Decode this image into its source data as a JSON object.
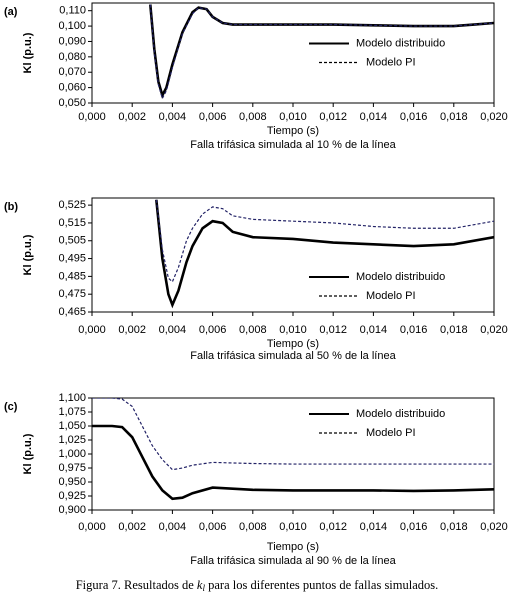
{
  "chart_data": [
    {
      "type": "line",
      "panel": "(a)",
      "ylabel": "Kl (p.u.)",
      "xlabel": "Tiempo (s)",
      "subtitle": "Falla trifásica simulada al 10 % de la línea",
      "x": [
        0.0029,
        0.0031,
        0.0033,
        0.0035,
        0.0037,
        0.004,
        0.0045,
        0.005,
        0.0053,
        0.0057,
        0.006,
        0.0065,
        0.007,
        0.008,
        0.01,
        0.012,
        0.014,
        0.016,
        0.018,
        0.019,
        0.02
      ],
      "series": [
        {
          "name": "Modelo distribuido",
          "color": "#000000",
          "line_style": "solid",
          "values": [
            0.114,
            0.085,
            0.064,
            0.055,
            0.06,
            0.075,
            0.096,
            0.109,
            0.112,
            0.111,
            0.106,
            0.102,
            0.101,
            0.101,
            0.101,
            0.101,
            0.1005,
            0.1,
            0.1,
            0.101,
            0.102
          ]
        },
        {
          "name": "Modelo PI",
          "color": "#222266",
          "line_style": "dashed",
          "values": [
            0.114,
            0.083,
            0.062,
            0.053,
            0.058,
            0.073,
            0.095,
            0.108,
            0.112,
            0.111,
            0.106,
            0.102,
            0.101,
            0.101,
            0.101,
            0.101,
            0.1005,
            0.1,
            0.1,
            0.101,
            0.102
          ]
        }
      ],
      "xlim": [
        0,
        0.02
      ],
      "xticks": [
        {
          "value": 0,
          "label": "0,000"
        },
        {
          "value": 0.002,
          "label": "0,002"
        },
        {
          "value": 0.004,
          "label": "0,004"
        },
        {
          "value": 0.006,
          "label": "0,006"
        },
        {
          "value": 0.008,
          "label": "0,008"
        },
        {
          "value": 0.01,
          "label": "0,010"
        },
        {
          "value": 0.012,
          "label": "0,012"
        },
        {
          "value": 0.014,
          "label": "0,014"
        },
        {
          "value": 0.016,
          "label": "0,016"
        },
        {
          "value": 0.018,
          "label": "0,018"
        },
        {
          "value": 0.02,
          "label": "0,020"
        }
      ],
      "ylim": [
        0.05,
        0.115
      ],
      "yticks": [
        {
          "value": 0.05,
          "label": "0,050"
        },
        {
          "value": 0.06,
          "label": "0,060"
        },
        {
          "value": 0.07,
          "label": "0,070"
        },
        {
          "value": 0.08,
          "label": "0,080"
        },
        {
          "value": 0.09,
          "label": "0,090"
        },
        {
          "value": 0.1,
          "label": "0,100"
        },
        {
          "value": 0.11,
          "label": "0,110"
        }
      ],
      "legend": "center right"
    },
    {
      "type": "line",
      "panel": "(b)",
      "ylabel": "Kl (p.u.)",
      "xlabel": "Tiempo (s)",
      "subtitle": "Falla trifásica simulada al 50 % de la línea",
      "x": [
        0.0032,
        0.0035,
        0.0038,
        0.004,
        0.0043,
        0.0047,
        0.005,
        0.0055,
        0.006,
        0.0065,
        0.007,
        0.008,
        0.01,
        0.012,
        0.014,
        0.016,
        0.018,
        0.02
      ],
      "series": [
        {
          "name": "Modelo distribuido",
          "color": "#000000",
          "line_style": "solid",
          "values": [
            0.528,
            0.495,
            0.475,
            0.469,
            0.477,
            0.493,
            0.502,
            0.512,
            0.516,
            0.515,
            0.51,
            0.507,
            0.506,
            0.504,
            0.503,
            0.502,
            0.503,
            0.507
          ]
        },
        {
          "name": "Modelo PI",
          "color": "#222266",
          "line_style": "dashed",
          "values": [
            0.528,
            0.5,
            0.484,
            0.482,
            0.49,
            0.505,
            0.512,
            0.52,
            0.524,
            0.523,
            0.519,
            0.517,
            0.516,
            0.515,
            0.513,
            0.512,
            0.512,
            0.516
          ]
        }
      ],
      "xlim": [
        0,
        0.02
      ],
      "xticks": [
        {
          "value": 0,
          "label": "0,000"
        },
        {
          "value": 0.002,
          "label": "0,002"
        },
        {
          "value": 0.004,
          "label": "0,004"
        },
        {
          "value": 0.006,
          "label": "0,006"
        },
        {
          "value": 0.008,
          "label": "0,008"
        },
        {
          "value": 0.01,
          "label": "0,010"
        },
        {
          "value": 0.012,
          "label": "0,012"
        },
        {
          "value": 0.014,
          "label": "0,014"
        },
        {
          "value": 0.016,
          "label": "0,016"
        },
        {
          "value": 0.018,
          "label": "0,018"
        },
        {
          "value": 0.02,
          "label": "0,020"
        }
      ],
      "ylim": [
        0.465,
        0.529
      ],
      "yticks": [
        {
          "value": 0.465,
          "label": "0,465"
        },
        {
          "value": 0.475,
          "label": "0,475"
        },
        {
          "value": 0.485,
          "label": "0,485"
        },
        {
          "value": 0.495,
          "label": "0,495"
        },
        {
          "value": 0.505,
          "label": "0,505"
        },
        {
          "value": 0.515,
          "label": "0,515"
        },
        {
          "value": 0.525,
          "label": "0,525"
        }
      ],
      "legend": "lower right"
    },
    {
      "type": "line",
      "panel": "(c)",
      "ylabel": "Kl (p.u.)",
      "xlabel": "Tiempo (s)",
      "subtitle": "Falla trifásica simulada al 90 % de la línea",
      "x": [
        0,
        0.001,
        0.0015,
        0.002,
        0.0025,
        0.003,
        0.0035,
        0.004,
        0.0045,
        0.005,
        0.006,
        0.008,
        0.01,
        0.012,
        0.014,
        0.016,
        0.018,
        0.02
      ],
      "series": [
        {
          "name": "Modelo distribuido",
          "color": "#000000",
          "line_style": "solid",
          "values": [
            1.05,
            1.05,
            1.048,
            1.03,
            0.995,
            0.96,
            0.935,
            0.92,
            0.922,
            0.93,
            0.94,
            0.936,
            0.935,
            0.935,
            0.935,
            0.934,
            0.935,
            0.937
          ]
        },
        {
          "name": "Modelo PI",
          "color": "#222266",
          "line_style": "dashed",
          "values": [
            1.1,
            1.1,
            1.098,
            1.085,
            1.05,
            1.015,
            0.99,
            0.972,
            0.975,
            0.98,
            0.985,
            0.983,
            0.982,
            0.982,
            0.982,
            0.982,
            0.982,
            0.982
          ]
        }
      ],
      "xlim": [
        0,
        0.02
      ],
      "xticks": [
        {
          "value": 0,
          "label": "0,000"
        },
        {
          "value": 0.002,
          "label": "0,002"
        },
        {
          "value": 0.004,
          "label": "0,004"
        },
        {
          "value": 0.006,
          "label": "0,006"
        },
        {
          "value": 0.008,
          "label": "0,008"
        },
        {
          "value": 0.01,
          "label": "0,010"
        },
        {
          "value": 0.012,
          "label": "0,012"
        },
        {
          "value": 0.014,
          "label": "0,014"
        },
        {
          "value": 0.016,
          "label": "0,016"
        },
        {
          "value": 0.018,
          "label": "0,018"
        },
        {
          "value": 0.02,
          "label": "0,020"
        }
      ],
      "ylim": [
        0.9,
        1.1
      ],
      "yticks": [
        {
          "value": 0.9,
          "label": "0,900"
        },
        {
          "value": 0.925,
          "label": "0,925"
        },
        {
          "value": 0.95,
          "label": "0,950"
        },
        {
          "value": 0.975,
          "label": "0,975"
        },
        {
          "value": 1,
          "label": "1,000"
        },
        {
          "value": 1.025,
          "label": "1,025"
        },
        {
          "value": 1.05,
          "label": "1,050"
        },
        {
          "value": 1.075,
          "label": "1,075"
        },
        {
          "value": 1.1,
          "label": "1,100"
        }
      ],
      "legend": "upper right"
    }
  ],
  "caption": {
    "before": "Figura 7. Resultados de ",
    "symbol": "k",
    "subscript": "l",
    "after": " para los diferentes puntos de fallas simulados."
  }
}
